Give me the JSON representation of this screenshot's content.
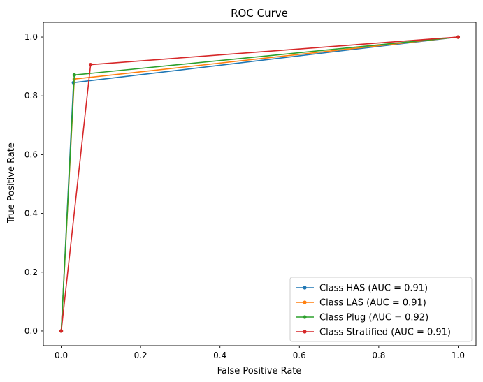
{
  "chart_data": {
    "type": "line",
    "title": "ROC Curve",
    "xlabel": "False Positive Rate",
    "ylabel": "True Positive Rate",
    "xlim": [
      -0.045,
      1.045
    ],
    "ylim": [
      -0.05,
      1.05
    ],
    "xticks": [
      "0.0",
      "0.2",
      "0.4",
      "0.6",
      "0.8",
      "1.0"
    ],
    "yticks": [
      "0.0",
      "0.2",
      "0.4",
      "0.6",
      "0.8",
      "1.0"
    ],
    "xtick_values": [
      0,
      0.2,
      0.4,
      0.6,
      0.8,
      1.0
    ],
    "ytick_values": [
      0,
      0.2,
      0.4,
      0.6,
      0.8,
      1.0
    ],
    "grid": false,
    "legend_position": "lower-right",
    "series": [
      {
        "name": "Class HAS (AUC = 0.91)",
        "color": "#1f77b4",
        "x": [
          0,
          0.031,
          1.0
        ],
        "y": [
          0,
          0.845,
          1.0
        ]
      },
      {
        "name": "Class LAS (AUC = 0.91)",
        "color": "#ff7f0e",
        "x": [
          0,
          0.033,
          1.0
        ],
        "y": [
          0,
          0.857,
          1.0
        ]
      },
      {
        "name": "Class Plug (AUC = 0.92)",
        "color": "#2ca02c",
        "x": [
          0,
          0.033,
          1.0
        ],
        "y": [
          0,
          0.871,
          1.0
        ]
      },
      {
        "name": "Class Stratified (AUC = 0.91)",
        "color": "#d62728",
        "x": [
          0,
          0.074,
          1.0
        ],
        "y": [
          0,
          0.906,
          1.0
        ]
      }
    ]
  }
}
